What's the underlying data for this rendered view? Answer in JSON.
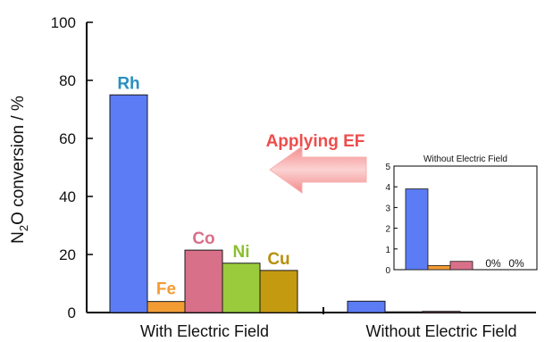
{
  "chart_data": {
    "type": "bar",
    "ylabel_main": "N",
    "ylabel_sub": "2",
    "ylabel_rest": "O conversion / %",
    "ylim": [
      0,
      100
    ],
    "yticks": [
      "0",
      "20",
      "40",
      "60",
      "80",
      "100"
    ],
    "groups": [
      "With Electric Field",
      "Without Electric Field"
    ],
    "series": [
      {
        "name": "Rh",
        "group": "With Electric Field",
        "value": 75,
        "color": "#5b7cf5",
        "label_color": "#2a8fbf"
      },
      {
        "name": "Fe",
        "group": "With Electric Field",
        "value": 3.8,
        "color": "#f39c34",
        "label_color": "#f39c34"
      },
      {
        "name": "Co",
        "group": "With Electric Field",
        "value": 21.5,
        "color": "#d9708a",
        "label_color": "#d9708a"
      },
      {
        "name": "Ni",
        "group": "With Electric Field",
        "value": 17,
        "color": "#9acb3c",
        "label_color": "#8cbf2f"
      },
      {
        "name": "Cu",
        "group": "With Electric Field",
        "value": 14.5,
        "color": "#c49a10",
        "label_color": "#b8900c"
      }
    ],
    "without_ef_values": [
      3.9,
      0.25,
      0.4,
      0,
      0
    ],
    "annotation": "Applying EF",
    "inset": {
      "title": "Without Electric Field",
      "ylim": [
        0,
        5
      ],
      "yticks": [
        "0",
        "1",
        "2",
        "3",
        "4",
        "5"
      ],
      "values": [
        3.9,
        0.2,
        0.4,
        0,
        0
      ],
      "zero_labels": [
        "0%",
        "0%"
      ]
    }
  }
}
